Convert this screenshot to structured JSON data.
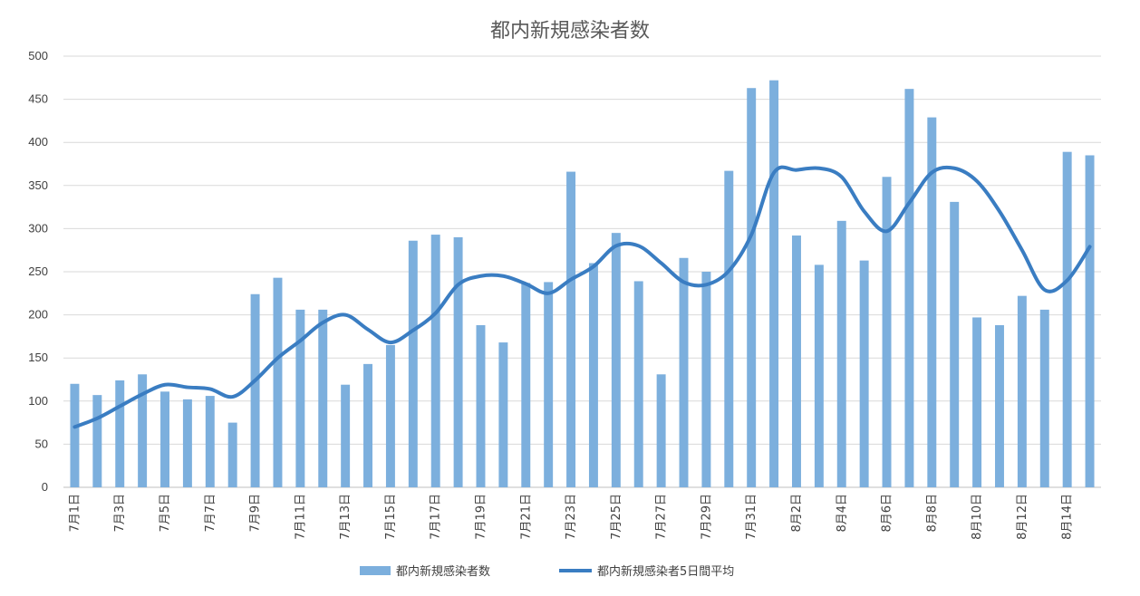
{
  "chart_data": {
    "type": "bar",
    "title": "都内新規感染者数",
    "xlabel": "",
    "ylabel": "",
    "ylim": [
      0,
      500
    ],
    "yticks": [
      0,
      50,
      100,
      150,
      200,
      250,
      300,
      350,
      400,
      450,
      500
    ],
    "grid": true,
    "legend_position": "bottom",
    "categories": [
      "7月1日",
      "7月2日",
      "7月3日",
      "7月4日",
      "7月5日",
      "7月6日",
      "7月7日",
      "7月8日",
      "7月9日",
      "7月10日",
      "7月11日",
      "7月12日",
      "7月13日",
      "7月14日",
      "7月15日",
      "7月16日",
      "7月17日",
      "7月18日",
      "7月19日",
      "7月20日",
      "7月21日",
      "7月22日",
      "7月23日",
      "7月24日",
      "7月25日",
      "7月26日",
      "7月27日",
      "7月28日",
      "7月29日",
      "7月30日",
      "7月31日",
      "8月1日",
      "8月2日",
      "8月3日",
      "8月4日",
      "8月5日",
      "8月6日",
      "8月7日",
      "8月8日",
      "8月9日",
      "8月10日",
      "8月11日",
      "8月12日",
      "8月13日",
      "8月14日",
      "8月15日"
    ],
    "tick_labels": [
      "7月1日",
      "",
      "7月3日",
      "",
      "7月5日",
      "",
      "7月7日",
      "",
      "7月9日",
      "",
      "7月11日",
      "",
      "7月13日",
      "",
      "7月15日",
      "",
      "7月17日",
      "",
      "7月19日",
      "",
      "7月21日",
      "",
      "7月23日",
      "",
      "7月25日",
      "",
      "7月27日",
      "",
      "7月29日",
      "",
      "7月31日",
      "",
      "8月2日",
      "",
      "8月4日",
      "",
      "8月6日",
      "",
      "8月8日",
      "",
      "8月10日",
      "",
      "8月12日",
      "",
      "8月14日",
      ""
    ],
    "series": [
      {
        "name": "都内新規感染者数",
        "kind": "bar",
        "color": "#7cafdd",
        "values": [
          120,
          107,
          124,
          131,
          111,
          102,
          106,
          75,
          224,
          243,
          206,
          206,
          119,
          143,
          165,
          286,
          293,
          290,
          188,
          168,
          237,
          238,
          366,
          260,
          295,
          239,
          131,
          266,
          250,
          367,
          463,
          472,
          292,
          258,
          309,
          263,
          360,
          462,
          429,
          331,
          197,
          188,
          222,
          206,
          389,
          385
        ]
      },
      {
        "name": "都内新規感染者5日間平均",
        "kind": "line",
        "color": "#3a7dc2",
        "values": [
          70,
          80,
          94,
          108,
          119,
          116,
          114,
          105,
          124,
          150,
          170,
          191,
          200,
          183,
          168,
          182,
          202,
          235,
          245,
          245,
          236,
          225,
          241,
          256,
          280,
          280,
          260,
          238,
          235,
          251,
          293,
          365,
          368,
          370,
          360,
          320,
          297,
          330,
          365,
          370,
          355,
          320,
          275,
          229,
          240,
          279
        ]
      }
    ]
  }
}
